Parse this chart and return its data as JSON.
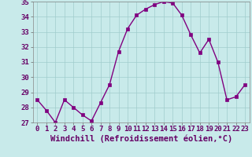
{
  "x": [
    0,
    1,
    2,
    3,
    4,
    5,
    6,
    7,
    8,
    9,
    10,
    11,
    12,
    13,
    14,
    15,
    16,
    17,
    18,
    19,
    20,
    21,
    22,
    23
  ],
  "y": [
    28.5,
    27.8,
    27.0,
    28.5,
    28.0,
    27.5,
    27.1,
    28.3,
    29.5,
    31.7,
    33.2,
    34.1,
    34.5,
    34.8,
    35.0,
    34.9,
    34.1,
    32.8,
    31.6,
    32.5,
    31.0,
    28.5,
    28.7,
    29.5
  ],
  "line_color": "#800080",
  "marker_color": "#800080",
  "bg_color": "#c8eaea",
  "grid_color": "#a0cccc",
  "xlabel": "Windchill (Refroidissement éolien,°C)",
  "ylim": [
    27,
    35
  ],
  "xlim": [
    -0.5,
    23.5
  ],
  "yticks": [
    27,
    28,
    29,
    30,
    31,
    32,
    33,
    34,
    35
  ],
  "xticks": [
    0,
    1,
    2,
    3,
    4,
    5,
    6,
    7,
    8,
    9,
    10,
    11,
    12,
    13,
    14,
    15,
    16,
    17,
    18,
    19,
    20,
    21,
    22,
    23
  ],
  "tick_label_fontsize": 6.5,
  "xlabel_fontsize": 7.5,
  "line_width": 1.0,
  "marker_size": 2.5
}
